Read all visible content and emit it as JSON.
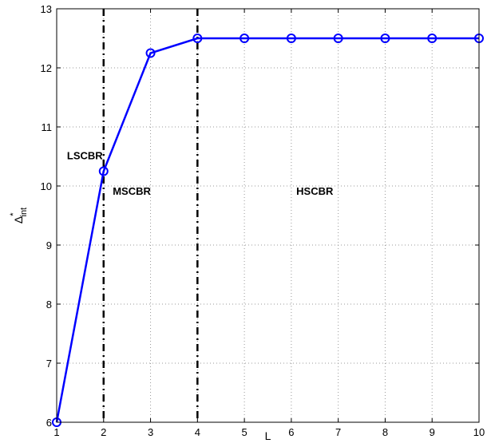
{
  "chart_data": {
    "type": "line",
    "title": "",
    "xlabel": "L",
    "ylabel": "Δ*int",
    "ylabel_parts": {
      "base": "Δ",
      "sup": "*",
      "sub": "int"
    },
    "x": [
      1,
      2,
      3,
      4,
      5,
      6,
      7,
      8,
      9,
      10
    ],
    "series": [
      {
        "values": [
          6,
          10.25,
          12.25,
          12.5,
          12.5,
          12.5,
          12.5,
          12.5,
          12.5,
          12.5
        ],
        "color": "#0000ff",
        "marker": "circle"
      }
    ],
    "xlim": [
      1,
      10
    ],
    "ylim": [
      6,
      13
    ],
    "xticks": [
      1,
      2,
      3,
      4,
      5,
      6,
      7,
      8,
      9,
      10
    ],
    "yticks": [
      6,
      7,
      8,
      9,
      10,
      11,
      12,
      13
    ],
    "grid": true,
    "vlines": [
      2,
      4
    ],
    "regions": [
      {
        "label": "LSCBR",
        "x": 1.6,
        "y": 10.45
      },
      {
        "label": "MSCBR",
        "x": 2.6,
        "y": 9.85
      },
      {
        "label": "HSCBR",
        "x": 6.5,
        "y": 9.85
      }
    ]
  }
}
